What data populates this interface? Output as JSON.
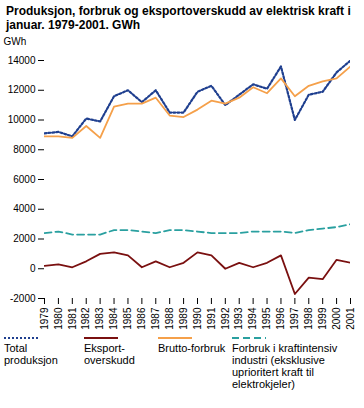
{
  "chart_data": {
    "type": "line",
    "title": "Produksjon, forbruk og eksportoverskudd av elektrisk kraft i januar. 1979-2001. GWh",
    "y_label": "GWh",
    "x": [
      1979,
      1980,
      1981,
      1982,
      1983,
      1984,
      1985,
      1986,
      1987,
      1988,
      1989,
      1990,
      1991,
      1992,
      1993,
      1994,
      1995,
      1996,
      1997,
      1998,
      1999,
      2000,
      2001
    ],
    "xlim": [
      1979,
      2001
    ],
    "xticks": [
      1979,
      1980,
      1981,
      1982,
      1983,
      1984,
      1985,
      1986,
      1987,
      1988,
      1989,
      1990,
      1991,
      1992,
      1993,
      1994,
      1995,
      1996,
      1997,
      1998,
      1999,
      2000,
      2001
    ],
    "ylim": [
      -2000,
      14000
    ],
    "yticks": [
      -2000,
      0,
      2000,
      4000,
      6000,
      8000,
      10000,
      12000,
      14000
    ],
    "grid": false,
    "series": [
      {
        "name": "Total produksjon",
        "color": "#1f3f8f",
        "line_style": "dotted",
        "values": [
          9100,
          9200,
          8900,
          10100,
          9900,
          11600,
          12000,
          11200,
          12000,
          10500,
          10500,
          11900,
          12300,
          11000,
          11700,
          12400,
          12100,
          13600,
          10000,
          11700,
          11900,
          13200,
          14000
        ]
      },
      {
        "name": "Eksport-overskudd",
        "color": "#7a1010",
        "line_style": "solid",
        "values": [
          200,
          300,
          100,
          500,
          1000,
          1100,
          900,
          100,
          500,
          100,
          400,
          1100,
          900,
          0,
          400,
          100,
          400,
          900,
          -1700,
          -600,
          -700,
          600,
          400
        ]
      },
      {
        "name": "Brutto-forbruk",
        "color": "#f5a04a",
        "line_style": "solid",
        "values": [
          8900,
          8900,
          8800,
          9600,
          8800,
          10900,
          11100,
          11100,
          11500,
          10300,
          10200,
          10700,
          11300,
          11100,
          11500,
          12200,
          11800,
          12800,
          11600,
          12300,
          12600,
          12800,
          13600
        ]
      },
      {
        "name": "Forbruk i kraftintensiv industri (eksklusive uprioritert kraft til elektrokjeler)",
        "color": "#2aa0a0",
        "line_style": "dashed",
        "values": [
          2400,
          2500,
          2300,
          2300,
          2300,
          2600,
          2600,
          2500,
          2400,
          2600,
          2600,
          2500,
          2400,
          2400,
          2400,
          2500,
          2500,
          2500,
          2400,
          2600,
          2700,
          2800,
          3000
        ]
      }
    ]
  }
}
